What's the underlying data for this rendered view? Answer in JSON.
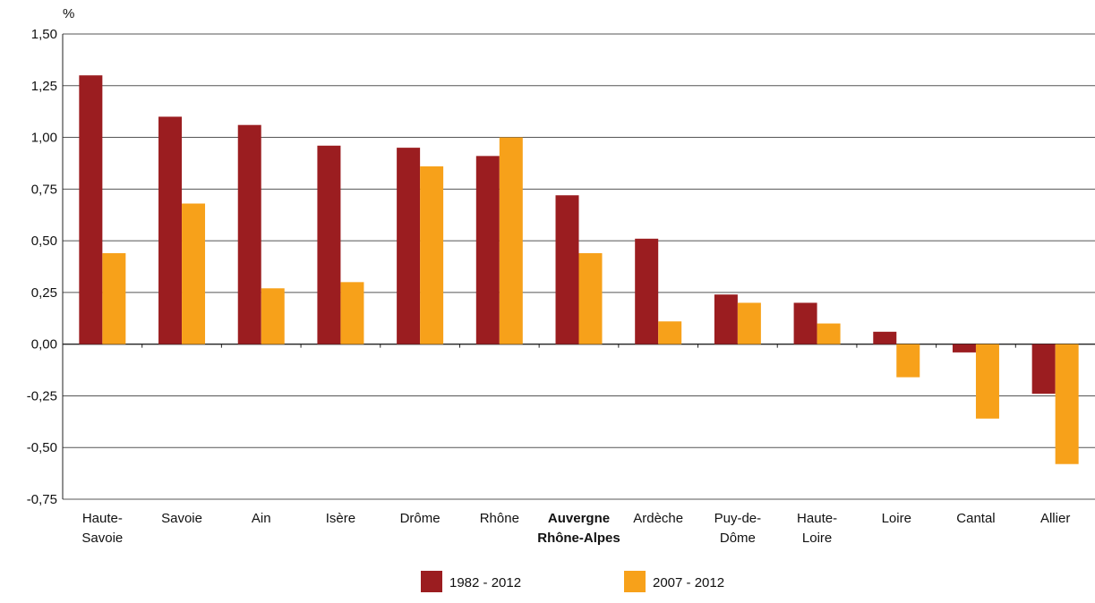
{
  "chart_data": {
    "type": "bar",
    "unit_label": "%",
    "categories": [
      [
        "Haute-",
        "Savoie"
      ],
      [
        "Savoie"
      ],
      [
        "Ain"
      ],
      [
        "Isère"
      ],
      [
        "Drôme"
      ],
      [
        "Rhône"
      ],
      [
        "Auvergne",
        "Rhône-Alpes"
      ],
      [
        "Ardèche"
      ],
      [
        "Puy-de-",
        "Dôme"
      ],
      [
        "Haute-",
        "Loire"
      ],
      [
        "Loire"
      ],
      [
        "Cantal"
      ],
      [
        "Allier"
      ]
    ],
    "highlight_category_index": 6,
    "series": [
      {
        "name": "1982 - 2012",
        "color": "#9b1d20",
        "values": [
          1.3,
          1.1,
          1.06,
          0.96,
          0.95,
          0.91,
          0.72,
          0.51,
          0.24,
          0.2,
          0.06,
          -0.04,
          -0.24
        ]
      },
      {
        "name": "2007 - 2012",
        "color": "#f7a11a",
        "values": [
          0.44,
          0.68,
          0.27,
          0.3,
          0.86,
          1.0,
          0.44,
          0.11,
          0.2,
          0.1,
          -0.16,
          -0.36,
          -0.58
        ]
      }
    ],
    "y_ticks": [
      "1,50",
      "1,25",
      "1,00",
      "0,75",
      "0,50",
      "0,25",
      "0,00",
      "-0,25",
      "-0,50",
      "-0,75"
    ],
    "ylim": [
      -0.75,
      1.5
    ],
    "grid": true,
    "legend_position": "bottom-center"
  }
}
